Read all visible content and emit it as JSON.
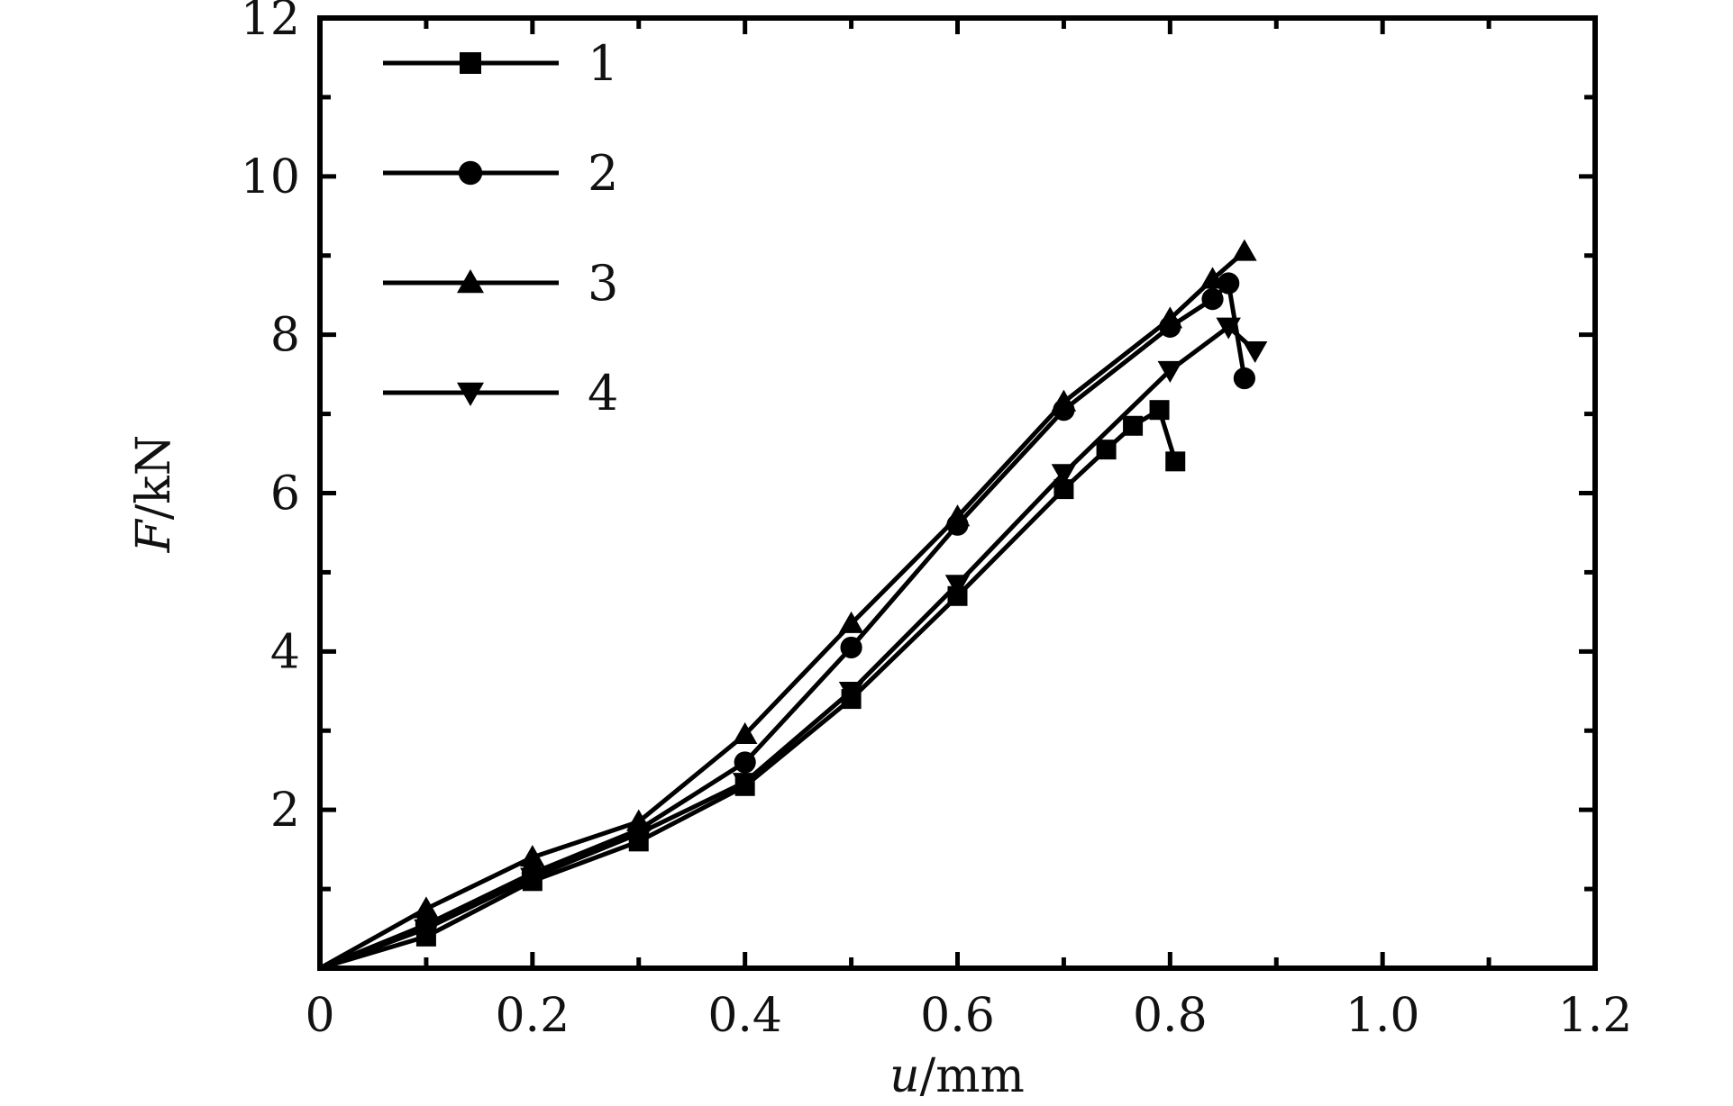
{
  "chart_data": {
    "type": "line",
    "xlabel_italic": "u",
    "xlabel_unit": "/mm",
    "ylabel_italic": "F",
    "ylabel_unit": "/kN",
    "xlim": [
      0,
      1.2
    ],
    "ylim": [
      0,
      12
    ],
    "x_ticks": [
      0,
      0.2,
      0.4,
      0.6,
      0.8,
      1.0,
      1.2
    ],
    "x_tick_labels": [
      "0",
      "0.2",
      "0.4",
      "0.6",
      "0.8",
      "1.0",
      "1.2"
    ],
    "y_ticks": [
      2,
      4,
      6,
      8,
      10,
      12
    ],
    "y_tick_labels": [
      "2",
      "4",
      "6",
      "8",
      "10",
      "12"
    ],
    "grid": false,
    "legend_position": "top-left",
    "series": [
      {
        "name": "1",
        "marker": "square",
        "x": [
          0,
          0.1,
          0.2,
          0.3,
          0.4,
          0.5,
          0.6,
          0.7,
          0.74,
          0.765,
          0.79,
          0.805
        ],
        "y": [
          0,
          0.4,
          1.1,
          1.6,
          2.3,
          3.4,
          4.7,
          6.05,
          6.55,
          6.85,
          7.05,
          6.4
        ]
      },
      {
        "name": "2",
        "marker": "circle",
        "x": [
          0,
          0.1,
          0.2,
          0.3,
          0.4,
          0.5,
          0.6,
          0.7,
          0.8,
          0.84,
          0.855,
          0.87
        ],
        "y": [
          0,
          0.55,
          1.2,
          1.75,
          2.6,
          4.05,
          5.6,
          7.05,
          8.1,
          8.45,
          8.65,
          7.45
        ]
      },
      {
        "name": "3",
        "marker": "triangle-up",
        "x": [
          0,
          0.1,
          0.2,
          0.3,
          0.4,
          0.5,
          0.6,
          0.7,
          0.8,
          0.84,
          0.87
        ],
        "y": [
          0,
          0.75,
          1.4,
          1.85,
          2.95,
          4.35,
          5.7,
          7.15,
          8.2,
          8.7,
          9.05
        ]
      },
      {
        "name": "4",
        "marker": "triangle-down",
        "x": [
          0,
          0.1,
          0.2,
          0.3,
          0.4,
          0.5,
          0.6,
          0.7,
          0.8,
          0.855,
          0.88
        ],
        "y": [
          0,
          0.5,
          1.15,
          1.7,
          2.35,
          3.5,
          4.85,
          6.25,
          7.55,
          8.1,
          7.8
        ]
      }
    ]
  }
}
